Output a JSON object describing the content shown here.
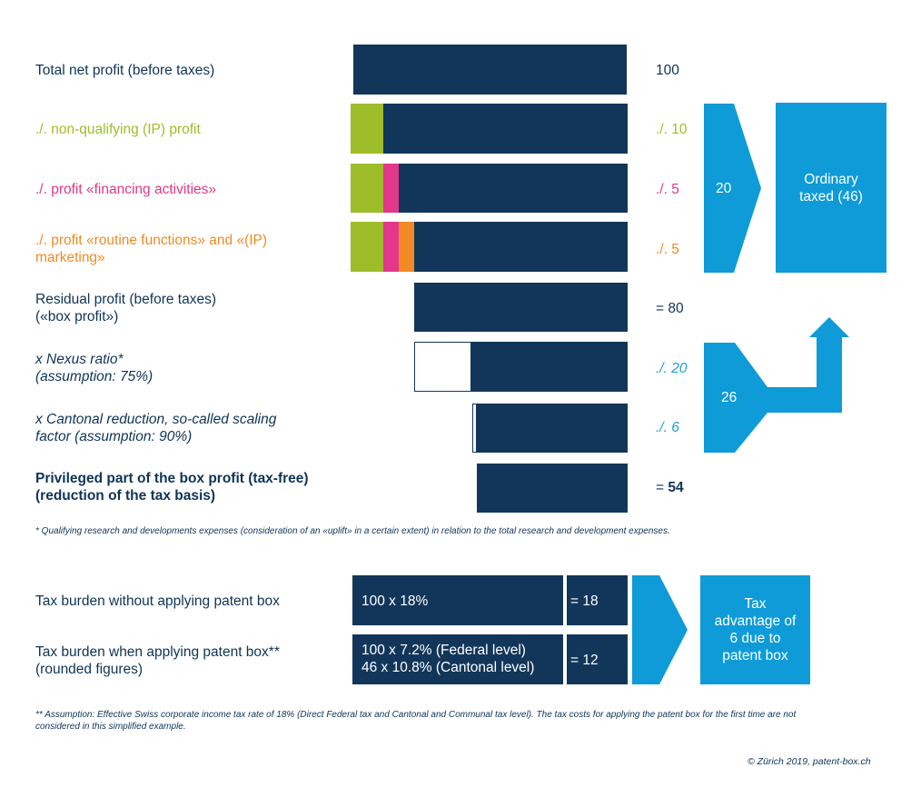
{
  "colors": {
    "navy": "#12365a",
    "text": "#0f3457",
    "green": "#9ebd2a",
    "pink": "#e2378b",
    "orange": "#ef8a24",
    "blue": "#0e9bd8",
    "cyan_text": "#1aa0da"
  },
  "rows": [
    {
      "label": "Total net profit (before taxes)",
      "value": "100"
    },
    {
      "label": "./. non-qualifying (IP) profit",
      "value": "./. 10"
    },
    {
      "label": "./. profit «financing activities»",
      "value": "./. 5"
    },
    {
      "label": "./. profit «routine functions» and «(IP)\nmarketing»",
      "value": "./. 5"
    },
    {
      "label": "Residual profit (before taxes)\n(«box profit»)",
      "value": "= 80"
    },
    {
      "label": "x Nexus ratio*\n(assumption: 75%)",
      "value": "./. 20"
    },
    {
      "label": "x Cantonal reduction, so-called scaling\nfactor (assumption: 90%)",
      "value": "./. 6"
    },
    {
      "label": "Privileged part of the box profit (tax-free)\n(reduction of the tax basis)",
      "value_prefix": "= ",
      "value": "54"
    }
  ],
  "arrows": {
    "upper_value": "20",
    "ordinary_box": "Ordinary\ntaxed (46)",
    "lower_value": "26"
  },
  "footnote1": "* Qualifying research and developments expenses (consideration of an «uplift» in a certain extent) in relation to the total research and development expenses.",
  "tax": {
    "row1_label": "Tax burden without applying patent box",
    "row1_calc": "100 x 18%",
    "row1_result": "= 18",
    "row2_label": "Tax burden when applying patent box**\n(rounded figures)",
    "row2_calc": "100 x 7.2% (Federal level)\n46 x 10.8% (Cantonal level)",
    "row2_result": "= 12",
    "advantage": "Tax\nadvantage of\n6 due to\npatent box"
  },
  "footnote2": "** Assumption: Effective Swiss corporate income tax rate of 18% (Direct Federal tax and Cantonal and Communal tax level). The tax costs for applying the patent box for the first time are not\nconsidered in this simplified example.",
  "copyright": "© Zürich 2019, patent-box.ch"
}
